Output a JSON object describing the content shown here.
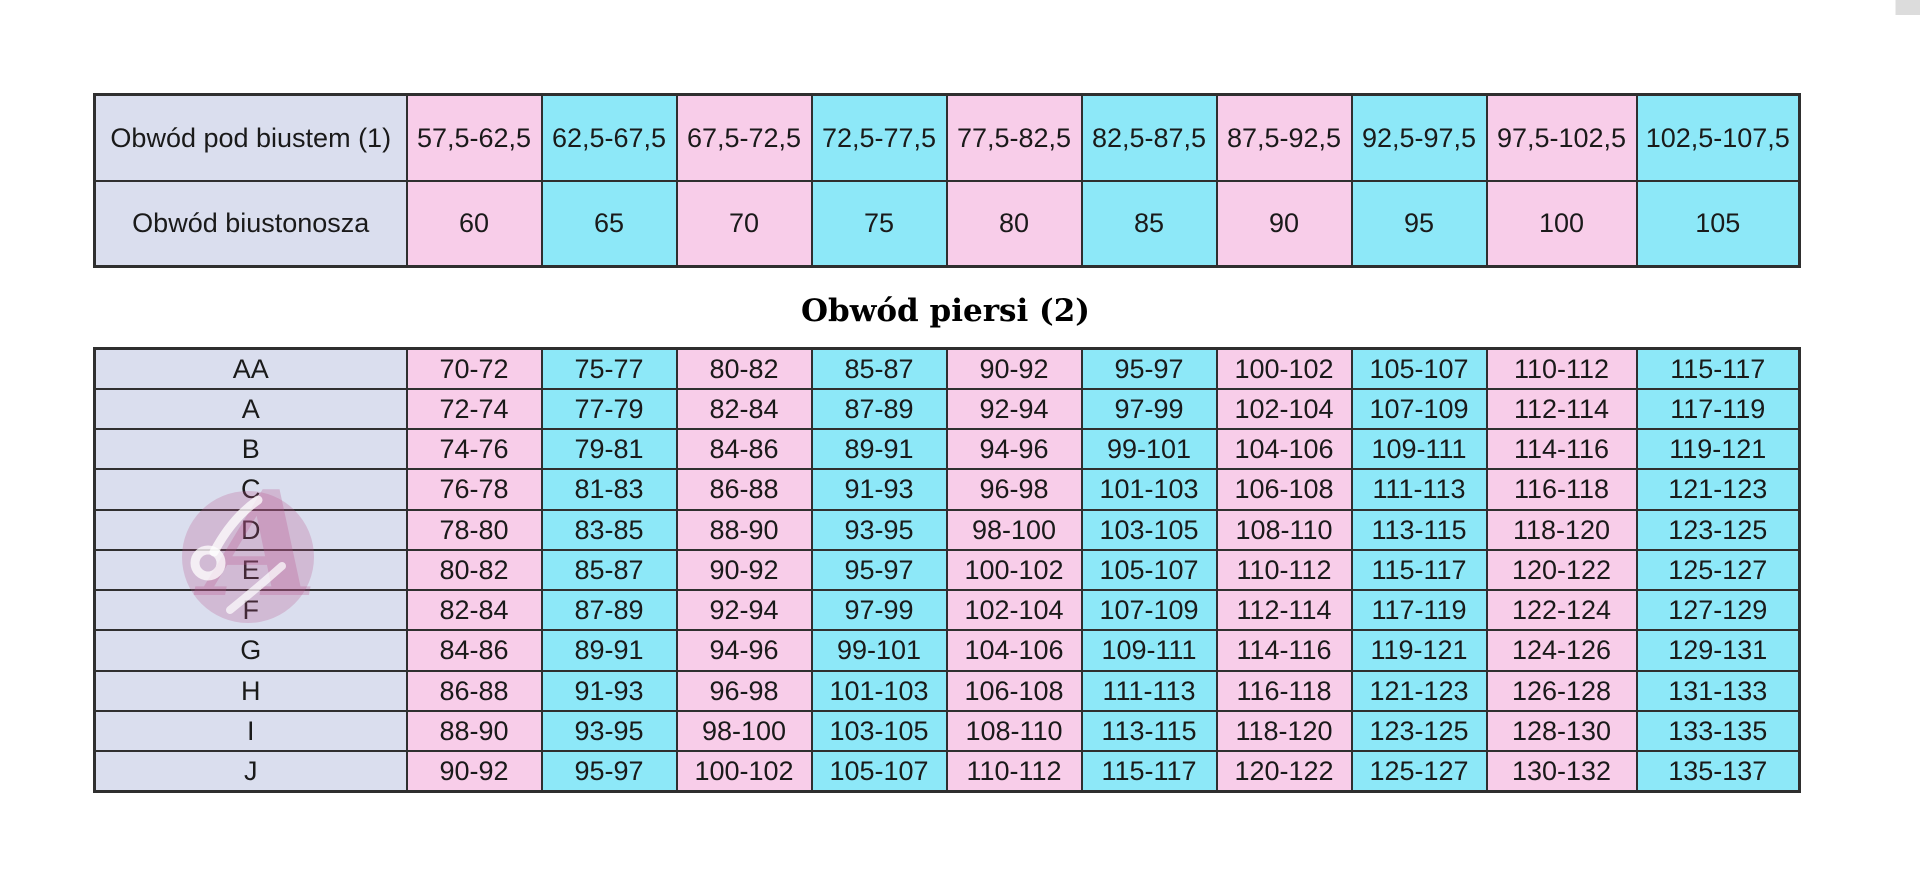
{
  "colors": {
    "pink": "#f8cde9",
    "cyan": "#8de8f8",
    "label_column": "#dadeee",
    "grid_border": "#2f2f2f",
    "cell_text": "#1a1a1a",
    "title_text": "#000000",
    "watermark_pink": "#b9568d",
    "scrollbar_gray": "#dcdcdc"
  },
  "band_table": {
    "underbust_label": "Obwód pod biustem (1)",
    "band_label": "Obwód biustonosza",
    "underbust_ranges": [
      "57,5-62,5",
      "62,5-67,5",
      "67,5-72,5",
      "72,5-77,5",
      "77,5-82,5",
      "82,5-87,5",
      "87,5-92,5",
      "92,5-97,5",
      "97,5-102,5",
      "102,5-107,5"
    ],
    "band_sizes": [
      "60",
      "65",
      "70",
      "75",
      "80",
      "85",
      "90",
      "95",
      "100",
      "105"
    ]
  },
  "section_title": "Obwód piersi (2)",
  "cup_table": {
    "cups": [
      "AA",
      "A",
      "B",
      "C",
      "D",
      "E",
      "F",
      "G",
      "H",
      "I",
      "J"
    ],
    "rows": [
      [
        "70-72",
        "75-77",
        "80-82",
        "85-87",
        "90-92",
        "95-97",
        "100-102",
        "105-107",
        "110-112",
        "115-117"
      ],
      [
        "72-74",
        "77-79",
        "82-84",
        "87-89",
        "92-94",
        "97-99",
        "102-104",
        "107-109",
        "112-114",
        "117-119"
      ],
      [
        "74-76",
        "79-81",
        "84-86",
        "89-91",
        "94-96",
        "99-101",
        "104-106",
        "109-111",
        "114-116",
        "119-121"
      ],
      [
        "76-78",
        "81-83",
        "86-88",
        "91-93",
        "96-98",
        "101-103",
        "106-108",
        "111-113",
        "116-118",
        "121-123"
      ],
      [
        "78-80",
        "83-85",
        "88-90",
        "93-95",
        "98-100",
        "103-105",
        "108-110",
        "113-115",
        "118-120",
        "123-125"
      ],
      [
        "80-82",
        "85-87",
        "90-92",
        "95-97",
        "100-102",
        "105-107",
        "110-112",
        "115-117",
        "120-122",
        "125-127"
      ],
      [
        "82-84",
        "87-89",
        "92-94",
        "97-99",
        "102-104",
        "107-109",
        "112-114",
        "117-119",
        "122-124",
        "127-129"
      ],
      [
        "84-86",
        "89-91",
        "94-96",
        "99-101",
        "104-106",
        "109-111",
        "114-116",
        "119-121",
        "124-126",
        "129-131"
      ],
      [
        "86-88",
        "91-93",
        "96-98",
        "101-103",
        "106-108",
        "111-113",
        "116-118",
        "121-123",
        "126-128",
        "131-133"
      ],
      [
        "88-90",
        "93-95",
        "98-100",
        "103-105",
        "108-110",
        "113-115",
        "118-120",
        "123-125",
        "128-130",
        "133-135"
      ],
      [
        "90-92",
        "95-97",
        "100-102",
        "105-107",
        "110-112",
        "115-117",
        "120-122",
        "125-127",
        "130-132",
        "135-137"
      ]
    ]
  }
}
